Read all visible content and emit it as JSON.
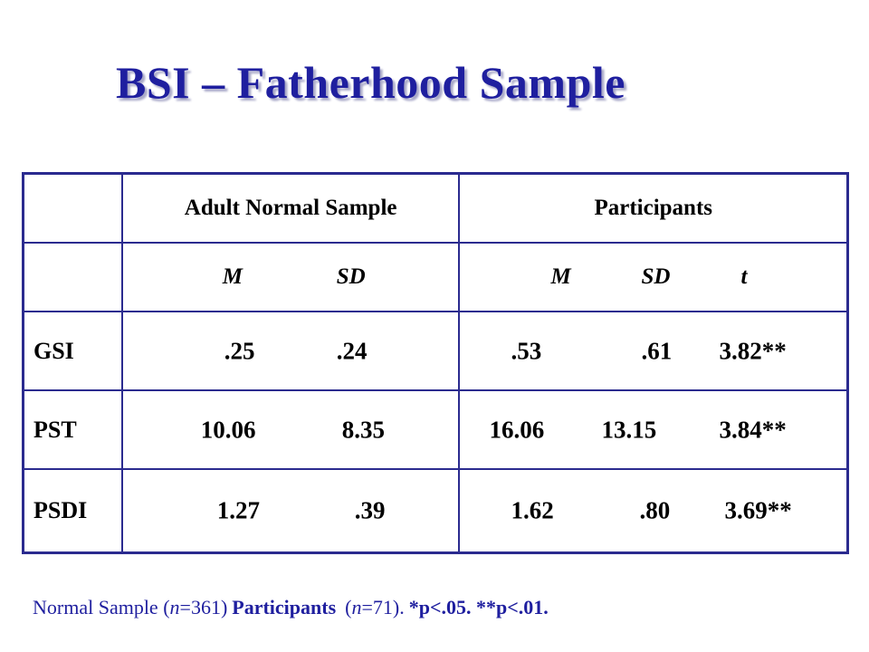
{
  "title": "BSI – Fatherhood Sample",
  "table": {
    "group_headers": {
      "normal": "Adult Normal Sample",
      "participants": "Participants"
    },
    "sub_headers": {
      "m": "M",
      "sd": "SD",
      "t": "t"
    },
    "rows": [
      {
        "label": "GSI",
        "normal_m": ".25",
        "normal_sd": ".24",
        "part_m": ".53",
        "part_sd": ".61",
        "t": "3.82**"
      },
      {
        "label": "PST",
        "normal_m": "10.06",
        "normal_sd": "8.35",
        "part_m": "16.06",
        "part_sd": "13.15",
        "t": "3.84**"
      },
      {
        "label": "PSDI",
        "normal_m": "1.27",
        "normal_sd": ".39",
        "part_m": "1.62",
        "part_sd": ".80",
        "t": "3.69**"
      }
    ]
  },
  "footnote": {
    "part1": "Normal Sample (",
    "n1": "n",
    "part2": "=361)",
    "part3": "Participants",
    "part4": "(",
    "n2": "n",
    "part5": "=71).",
    "part6": "*p<.05.  **p<.01."
  },
  "colors": {
    "title": "#1f1f9f",
    "border": "#2b2b8f",
    "footnote": "#1f1f9f"
  }
}
